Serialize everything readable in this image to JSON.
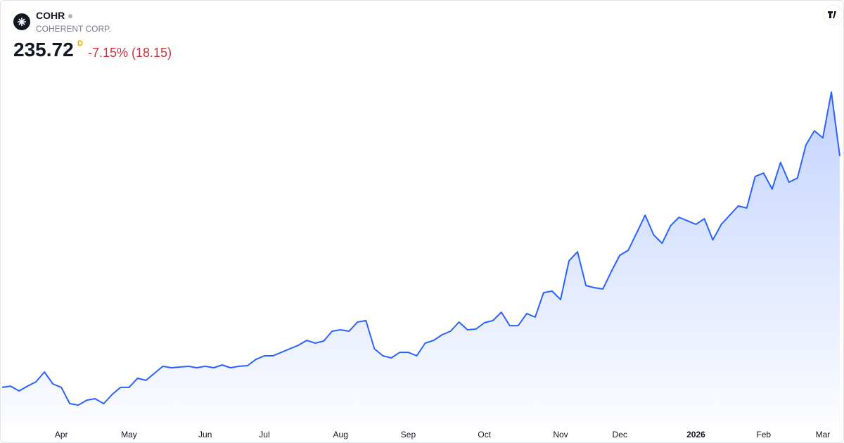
{
  "header": {
    "symbol": "COHR",
    "name": "COHERENT CORP.",
    "price": "235.72",
    "price_suffix": "D",
    "change": "-7.15% (18.15)"
  },
  "chart_data": {
    "type": "area",
    "categories": [
      null,
      null,
      null,
      null,
      null,
      null,
      null,
      "Apr",
      null,
      null,
      null,
      null,
      null,
      null,
      null,
      "May",
      null,
      null,
      null,
      null,
      null,
      null,
      null,
      null,
      "Jun",
      null,
      null,
      null,
      null,
      null,
      null,
      "Jul",
      null,
      null,
      null,
      null,
      null,
      null,
      null,
      null,
      "Aug",
      null,
      null,
      null,
      null,
      null,
      null,
      null,
      "Sep",
      null,
      null,
      null,
      null,
      null,
      null,
      null,
      null,
      "Oct",
      null,
      null,
      null,
      null,
      null,
      null,
      null,
      null,
      "Nov",
      null,
      null,
      null,
      null,
      null,
      null,
      "Dec",
      null,
      null,
      null,
      null,
      null,
      null,
      null,
      null,
      "2026",
      null,
      null,
      null,
      null,
      null,
      null,
      null,
      "Feb",
      null,
      null,
      null,
      null,
      null,
      null,
      "Mar",
      null,
      null
    ],
    "series": [
      {
        "name": "COHR",
        "color": "#2962ff",
        "values": [
          61.5,
          62.5,
          58.8,
          62.5,
          65.7,
          73.1,
          64.1,
          61.5,
          49.3,
          48.2,
          51.9,
          53.0,
          49.3,
          56.2,
          61.5,
          61.5,
          68.4,
          66.8,
          72.1,
          77.4,
          76.3,
          76.8,
          77.4,
          76.3,
          77.4,
          76.3,
          78.4,
          76.3,
          77.4,
          77.9,
          82.6,
          85.3,
          85.3,
          87.9,
          90.6,
          93.2,
          96.9,
          94.8,
          96.4,
          103.8,
          104.9,
          103.8,
          110.7,
          111.8,
          90.6,
          85.3,
          83.7,
          87.9,
          87.9,
          85.3,
          94.8,
          96.9,
          101.2,
          103.8,
          110.7,
          104.9,
          105.4,
          110.2,
          111.8,
          118.1,
          108.0,
          108.0,
          117.1,
          114.4,
          132.9,
          134.0,
          127.6,
          156.8,
          163.6,
          138.2,
          136.6,
          135.6,
          148.8,
          161.0,
          164.7,
          177.9,
          191.2,
          176.4,
          170.0,
          183.2,
          189.6,
          186.9,
          184.3,
          188.5,
          172.6,
          184.3,
          191.2,
          198.1,
          196.5,
          220.3,
          222.9,
          210.8,
          230.9,
          216.0,
          219.2,
          244.1,
          254.7,
          249.4,
          283.8,
          235.72
        ]
      }
    ],
    "ylim": [
      35,
      305
    ]
  }
}
